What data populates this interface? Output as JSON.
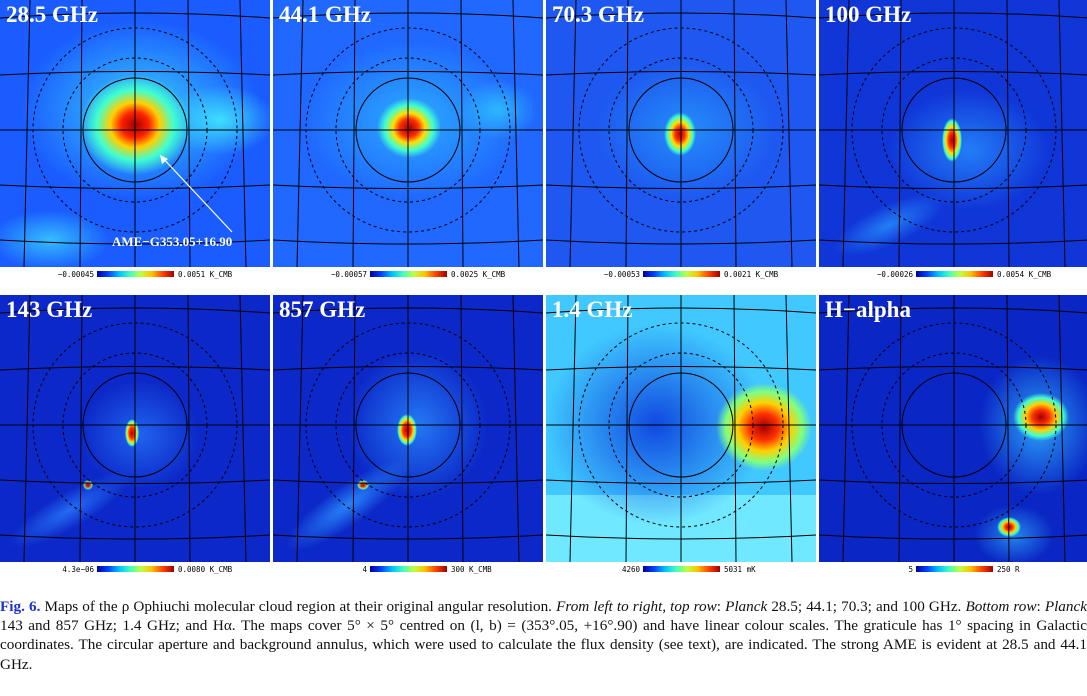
{
  "panels": [
    {
      "title": "28.5 GHz",
      "min": "−0.00045",
      "max": "0.0051 K_CMB",
      "annotation": "AME−G353.05+16.90"
    },
    {
      "title": "44.1 GHz",
      "min": "−0.00057",
      "max": "0.0025 K_CMB"
    },
    {
      "title": "70.3 GHz",
      "min": "−0.00053",
      "max": "0.0021 K_CMB"
    },
    {
      "title": "100 GHz",
      "min": "−0.00026",
      "max": "0.0054 K_CMB"
    },
    {
      "title": "143 GHz",
      "min": "4.3e−06",
      "max": "0.0080 K_CMB"
    },
    {
      "title": "857 GHz",
      "min": "4",
      "max": "300 K_CMB"
    },
    {
      "title": "1.4 GHz",
      "min": "4260",
      "max": "5031 mK"
    },
    {
      "title": "H−alpha",
      "min": "5",
      "max": "250 R"
    }
  ],
  "caption": {
    "figure_label": "Fig. 6.",
    "t1": " Maps of the ρ Ophiuchi molecular cloud region at their original angular resolution. ",
    "i1": "From left to right, top row",
    "t2": ": ",
    "i2": "Planck",
    "t3": " 28.5; 44.1; 70.3; and 100 GHz. ",
    "i3": "Bottom row",
    "t4": ": ",
    "i4": "Planck",
    "t5": " 143 and 857 GHz; 1.4 GHz; and Hα. The maps cover 5° × 5° centred on (l, b) = (353°.05, +16°.90) and have linear colour scales. The graticule has 1° spacing in Galactic coordinates. The circular aperture and background annulus, which were used to calculate the flux density (see text), are indicated. The strong AME is evident at 28.5 and 44.1 GHz."
  }
}
